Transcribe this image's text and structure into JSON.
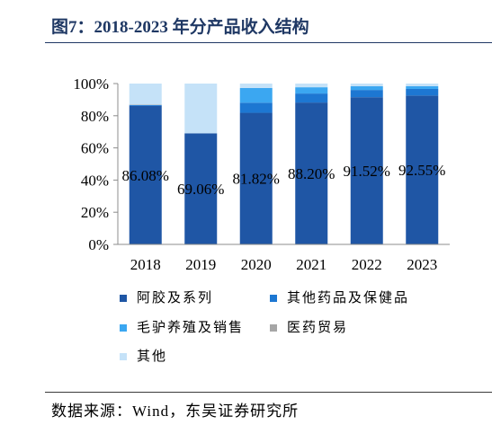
{
  "title": "图7：2018-2023 年分产品收入结构",
  "source": "数据来源：Wind，东吴证券研究所",
  "colors": {
    "title": "#1F3864",
    "axis": "#8C8C8C",
    "label_text": "#000000"
  },
  "chart_data": {
    "type": "bar",
    "stacked": true,
    "categories": [
      "2018",
      "2019",
      "2020",
      "2021",
      "2022",
      "2023"
    ],
    "series": [
      {
        "name": "阿胶及系列",
        "color": "#1F56A5",
        "values": [
          86.08,
          69.06,
          81.82,
          88.2,
          91.52,
          92.55
        ],
        "labels": [
          "86.08%",
          "69.06%",
          "81.82%",
          "88.20%",
          "91.52%",
          "92.55%"
        ]
      },
      {
        "name": "其他药品及保健品",
        "color": "#1D77D2",
        "values": [
          0.6,
          0,
          6.3,
          5.6,
          4.5,
          4.1
        ]
      },
      {
        "name": "毛驴养殖及销售",
        "color": "#3BA7F1",
        "values": [
          0,
          0,
          9.1,
          3.9,
          2.3,
          1.7
        ]
      },
      {
        "name": "医药贸易",
        "color": "#A6A6A6",
        "values": [
          0.3,
          0,
          0,
          0,
          0,
          0
        ]
      },
      {
        "name": "其他",
        "color": "#C5E2F8",
        "values": [
          13.02,
          30.94,
          2.78,
          2.3,
          1.68,
          1.65
        ]
      }
    ],
    "ylim": [
      0,
      100
    ],
    "yticks": [
      0,
      20,
      40,
      60,
      80,
      100
    ],
    "ytick_labels": [
      "0%",
      "20%",
      "40%",
      "60%",
      "80%",
      "100%"
    ],
    "grid": false,
    "legend": "bottom"
  }
}
